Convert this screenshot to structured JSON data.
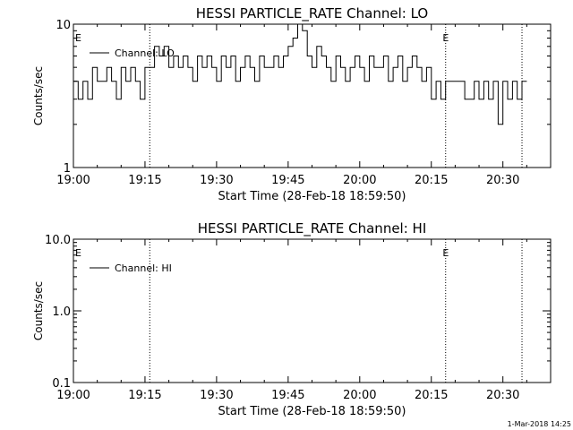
{
  "chart_data": [
    {
      "type": "line",
      "title": "HESSI PARTICLE_RATE Channel: LO",
      "xlabel": "Start Time (28-Feb-18 18:59:50)",
      "ylabel": "Counts/sec",
      "xlim": [
        "19:00",
        "20:40"
      ],
      "ylim": [
        1,
        10
      ],
      "yscale": "log",
      "x_ticks": [
        "19:00",
        "19:15",
        "19:30",
        "19:45",
        "20:00",
        "20:15",
        "20:30"
      ],
      "y_ticks": [
        "1",
        "10"
      ],
      "legend": {
        "placement": "top-left",
        "entries": [
          "Channel: LO"
        ]
      },
      "event_markers": [
        {
          "label": "E",
          "time": "19:00"
        },
        {
          "label": "E",
          "time": "20:17"
        }
      ],
      "vertical_lines": [
        "19:16",
        "20:18",
        "20:34"
      ],
      "series": [
        {
          "name": "Channel: LO",
          "step": true,
          "x": [
            "19:00",
            "19:01",
            "19:02",
            "19:03",
            "19:04",
            "19:05",
            "19:06",
            "19:07",
            "19:08",
            "19:09",
            "19:10",
            "19:11",
            "19:12",
            "19:13",
            "19:14",
            "19:15",
            "19:16",
            "19:17",
            "19:18",
            "19:19",
            "19:20",
            "19:21",
            "19:22",
            "19:23",
            "19:24",
            "19:25",
            "19:26",
            "19:27",
            "19:28",
            "19:29",
            "19:30",
            "19:31",
            "19:32",
            "19:33",
            "19:34",
            "19:35",
            "19:36",
            "19:37",
            "19:38",
            "19:39",
            "19:40",
            "19:41",
            "19:42",
            "19:43",
            "19:44",
            "19:45",
            "19:46",
            "19:47",
            "19:48",
            "19:49",
            "19:50",
            "19:51",
            "19:52",
            "19:53",
            "19:54",
            "19:55",
            "19:56",
            "19:57",
            "19:58",
            "19:59",
            "20:00",
            "20:01",
            "20:02",
            "20:03",
            "20:04",
            "20:05",
            "20:06",
            "20:07",
            "20:08",
            "20:09",
            "20:10",
            "20:11",
            "20:12",
            "20:13",
            "20:14",
            "20:15",
            "20:16",
            "20:17",
            "20:18",
            "20:19",
            "20:20",
            "20:21",
            "20:22",
            "20:23",
            "20:24",
            "20:25",
            "20:26",
            "20:27",
            "20:28",
            "20:29",
            "20:30",
            "20:31",
            "20:32",
            "20:33",
            "20:34"
          ],
          "values": [
            4,
            3,
            4,
            3,
            5,
            4,
            4,
            5,
            4,
            3,
            5,
            4,
            5,
            4,
            3,
            5,
            5,
            7,
            6,
            7,
            5,
            6,
            5,
            6,
            5,
            4,
            6,
            5,
            6,
            5,
            4,
            6,
            5,
            6,
            4,
            5,
            6,
            5,
            4,
            6,
            5,
            5,
            6,
            5,
            6,
            7,
            8,
            10,
            9,
            6,
            5,
            7,
            6,
            5,
            4,
            6,
            5,
            4,
            5,
            6,
            5,
            4,
            6,
            5,
            5,
            6,
            4,
            5,
            6,
            4,
            5,
            6,
            5,
            4,
            5,
            3,
            4,
            3,
            4,
            4,
            4,
            4,
            3,
            3,
            4,
            3,
            4,
            3,
            4,
            2,
            4,
            3,
            4,
            3,
            4
          ]
        }
      ]
    },
    {
      "type": "line",
      "title": "HESSI PARTICLE_RATE Channel: HI",
      "xlabel": "Start Time (28-Feb-18 18:59:50)",
      "ylabel": "Counts/sec",
      "xlim": [
        "19:00",
        "20:40"
      ],
      "ylim": [
        0.1,
        10
      ],
      "yscale": "log",
      "x_ticks": [
        "19:00",
        "19:15",
        "19:30",
        "19:45",
        "20:00",
        "20:15",
        "20:30"
      ],
      "y_ticks": [
        "0.1",
        "1.0",
        "10.0"
      ],
      "legend": {
        "placement": "top-left",
        "entries": [
          "Channel: HI"
        ]
      },
      "event_markers": [
        {
          "label": "E",
          "time": "19:00"
        },
        {
          "label": "E",
          "time": "20:17"
        }
      ],
      "vertical_lines": [
        "19:16",
        "20:18",
        "20:34"
      ],
      "series": [
        {
          "name": "Channel: HI",
          "step": true,
          "x": [],
          "values": []
        }
      ]
    }
  ],
  "footer": {
    "timestamp": "1-Mar-2018 14:25"
  }
}
